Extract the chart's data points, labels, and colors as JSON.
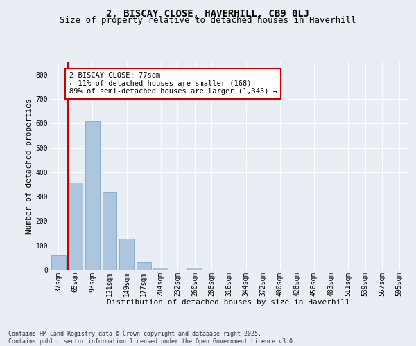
{
  "title1": "2, BISCAY CLOSE, HAVERHILL, CB9 0LJ",
  "title2": "Size of property relative to detached houses in Haverhill",
  "xlabel": "Distribution of detached houses by size in Haverhill",
  "ylabel": "Number of detached properties",
  "categories": [
    "37sqm",
    "65sqm",
    "93sqm",
    "121sqm",
    "149sqm",
    "177sqm",
    "204sqm",
    "232sqm",
    "260sqm",
    "288sqm",
    "316sqm",
    "344sqm",
    "372sqm",
    "400sqm",
    "428sqm",
    "456sqm",
    "483sqm",
    "511sqm",
    "539sqm",
    "567sqm",
    "595sqm"
  ],
  "values": [
    60,
    358,
    608,
    318,
    128,
    30,
    8,
    0,
    8,
    0,
    0,
    0,
    0,
    0,
    0,
    0,
    0,
    0,
    0,
    0,
    0
  ],
  "bar_color": "#adc6e0",
  "bar_edge_color": "#7aaac8",
  "vline_color": "#cc0000",
  "annotation_text": "2 BISCAY CLOSE: 77sqm\n← 11% of detached houses are smaller (168)\n89% of semi-detached houses are larger (1,345) →",
  "annotation_box_color": "#ffffff",
  "annotation_box_edge": "#cc0000",
  "ylim": [
    0,
    850
  ],
  "yticks": [
    0,
    100,
    200,
    300,
    400,
    500,
    600,
    700,
    800
  ],
  "background_color": "#e8eef4",
  "footer1": "Contains HM Land Registry data © Crown copyright and database right 2025.",
  "footer2": "Contains public sector information licensed under the Open Government Licence v3.0.",
  "title_fontsize": 10,
  "subtitle_fontsize": 9,
  "axis_label_fontsize": 8,
  "tick_fontsize": 7,
  "annotation_fontsize": 7.5,
  "footer_fontsize": 6
}
